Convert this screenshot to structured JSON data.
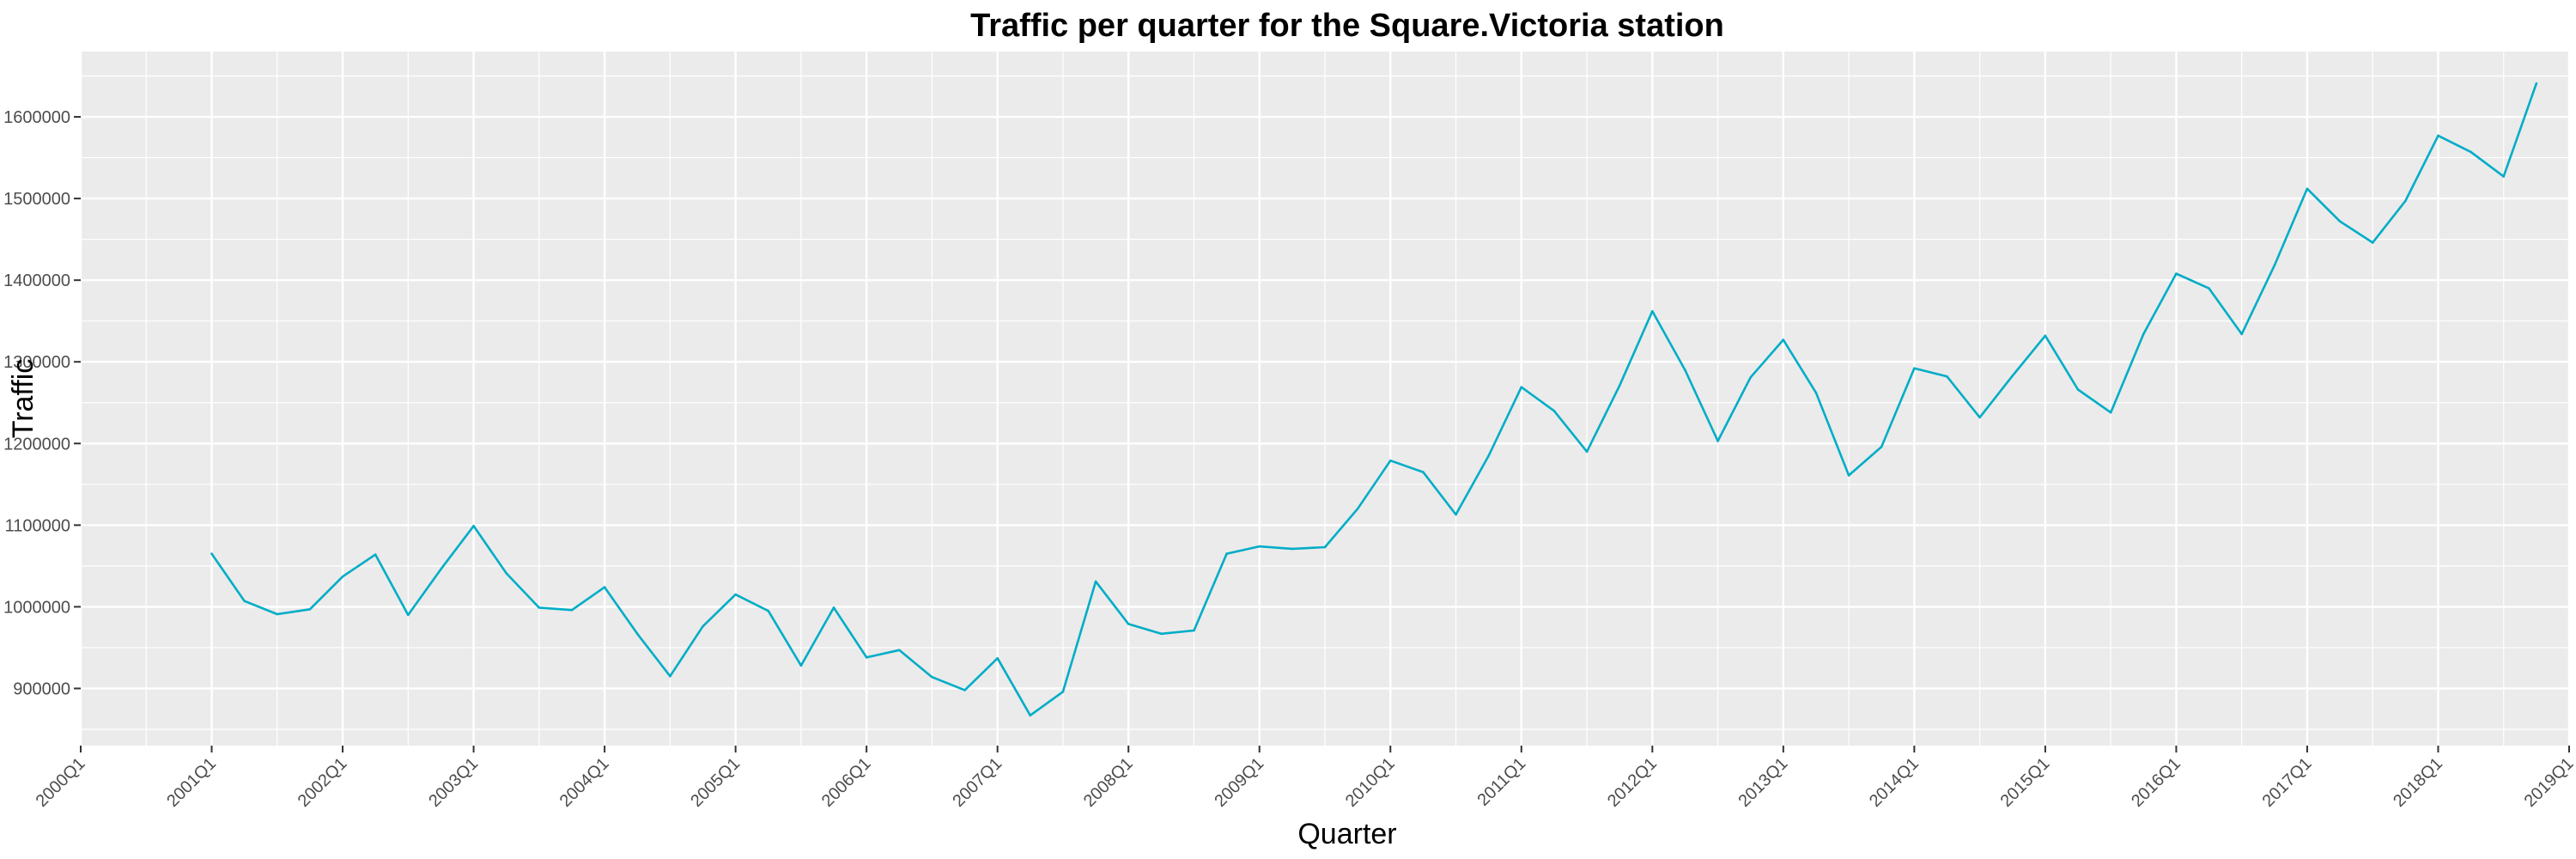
{
  "chart_data": {
    "type": "line",
    "title": "Traffic per quarter for the Square.Victoria station",
    "xlabel": "Quarter",
    "ylabel": "Traffic",
    "xlim": [
      2000.0,
      2019.0
    ],
    "ylim": [
      830000,
      1680000
    ],
    "x_ticks": [
      {
        "value": 2000,
        "label": "2000Q1"
      },
      {
        "value": 2001,
        "label": "2001Q1"
      },
      {
        "value": 2002,
        "label": "2002Q1"
      },
      {
        "value": 2003,
        "label": "2003Q1"
      },
      {
        "value": 2004,
        "label": "2004Q1"
      },
      {
        "value": 2005,
        "label": "2005Q1"
      },
      {
        "value": 2006,
        "label": "2006Q1"
      },
      {
        "value": 2007,
        "label": "2007Q1"
      },
      {
        "value": 2008,
        "label": "2008Q1"
      },
      {
        "value": 2009,
        "label": "2009Q1"
      },
      {
        "value": 2010,
        "label": "2010Q1"
      },
      {
        "value": 2011,
        "label": "2011Q1"
      },
      {
        "value": 2012,
        "label": "2012Q1"
      },
      {
        "value": 2013,
        "label": "2013Q1"
      },
      {
        "value": 2014,
        "label": "2014Q1"
      },
      {
        "value": 2015,
        "label": "2015Q1"
      },
      {
        "value": 2016,
        "label": "2016Q1"
      },
      {
        "value": 2017,
        "label": "2017Q1"
      },
      {
        "value": 2018,
        "label": "2018Q1"
      },
      {
        "value": 2019,
        "label": "2019Q1"
      }
    ],
    "y_ticks": [
      {
        "value": 900000,
        "label": "900000"
      },
      {
        "value": 1000000,
        "label": "1000000"
      },
      {
        "value": 1100000,
        "label": "1100000"
      },
      {
        "value": 1200000,
        "label": "1200000"
      },
      {
        "value": 1300000,
        "label": "1300000"
      },
      {
        "value": 1400000,
        "label": "1400000"
      },
      {
        "value": 1500000,
        "label": "1500000"
      },
      {
        "value": 1600000,
        "label": "1600000"
      }
    ],
    "grid": true,
    "colors": {
      "series": "#00adc7",
      "panel": "#ebebeb",
      "grid_major": "#ffffff"
    },
    "series": [
      {
        "x": [
          2001.0,
          2001.25,
          2001.5,
          2001.75,
          2002.0,
          2002.25,
          2002.5,
          2002.75,
          2003.0,
          2003.25,
          2003.5,
          2003.75,
          2004.0,
          2004.25,
          2004.5,
          2004.75,
          2005.0,
          2005.25,
          2005.5,
          2005.75,
          2006.0,
          2006.25,
          2006.5,
          2006.75,
          2007.0,
          2007.25,
          2007.5,
          2007.75,
          2008.0,
          2008.25,
          2008.5,
          2008.75,
          2009.0,
          2009.25,
          2009.5,
          2009.75,
          2010.0,
          2010.25,
          2010.5,
          2010.75,
          2011.0,
          2011.25,
          2011.5,
          2011.75,
          2012.0,
          2012.25,
          2012.5,
          2012.75,
          2013.0,
          2013.25,
          2013.5,
          2013.75,
          2014.0,
          2014.25,
          2014.5,
          2014.75,
          2015.0,
          2015.25,
          2015.5,
          2015.75,
          2016.0,
          2016.25,
          2016.5,
          2016.75,
          2017.0,
          2017.25,
          2017.5,
          2017.75,
          2018.0,
          2018.25,
          2018.5,
          2018.75
        ],
        "values": [
          1065000,
          1007000,
          991000,
          997000,
          1037000,
          1064000,
          990000,
          1046000,
          1099000,
          1041000,
          999000,
          996000,
          1024000,
          967000,
          915000,
          976000,
          1015000,
          995000,
          928000,
          999000,
          938000,
          947000,
          914000,
          898000,
          937000,
          867000,
          896000,
          1031000,
          979000,
          967000,
          971000,
          1065000,
          1074000,
          1071000,
          1073000,
          1120000,
          1179000,
          1165000,
          1113000,
          1185000,
          1269000,
          1240000,
          1190000,
          1271000,
          1362000,
          1290000,
          1203000,
          1281000,
          1327000,
          1262000,
          1161000,
          1196000,
          1292000,
          1282000,
          1232000,
          1283000,
          1332000,
          1266000,
          1238000,
          1334000,
          1408000,
          1390000,
          1334000,
          1418000,
          1512000,
          1472000,
          1446000,
          1497000,
          1577000,
          1557000,
          1527000,
          1641000
        ]
      }
    ]
  }
}
